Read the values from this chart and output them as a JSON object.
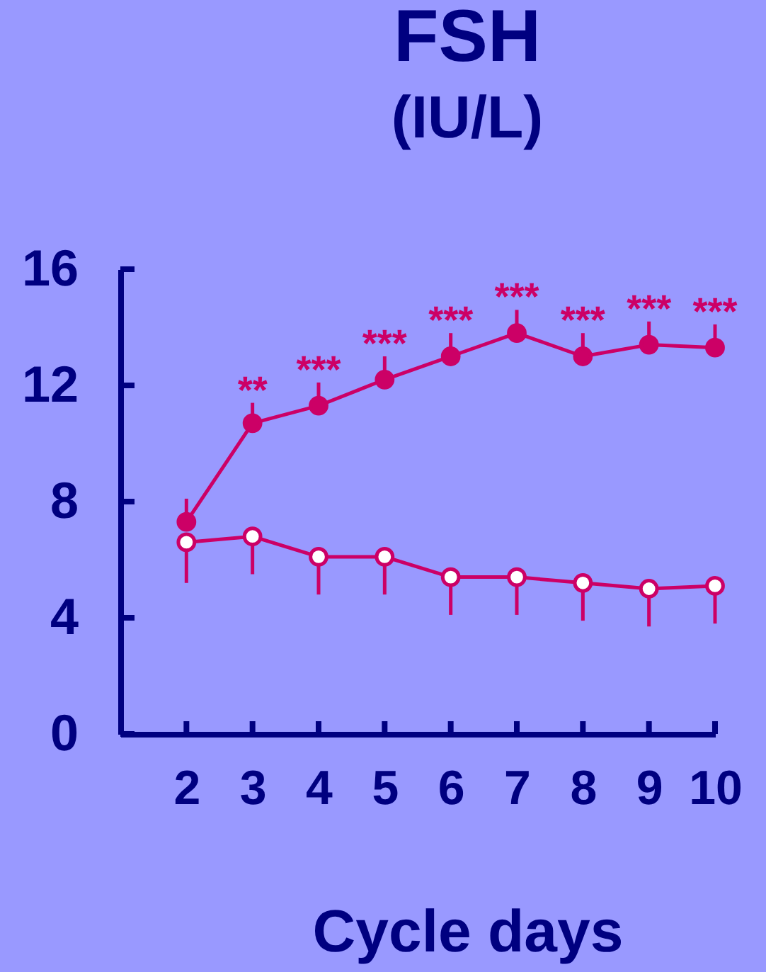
{
  "chart_data": {
    "type": "line",
    "title": "FSH",
    "subtitle": "(IU/L)",
    "xlabel": "Cycle days",
    "x": [
      2,
      3,
      4,
      5,
      6,
      7,
      8,
      9,
      10
    ],
    "xlim": [
      1,
      10
    ],
    "xticks": [
      2,
      3,
      4,
      5,
      6,
      7,
      8,
      9,
      10
    ],
    "ylim": [
      0,
      16
    ],
    "yticks": [
      0,
      4,
      8,
      12,
      16
    ],
    "marker": "circle",
    "line_style": "solid",
    "series": [
      {
        "color": "#cc0066",
        "values": [
          7.3,
          10.7,
          11.3,
          12.2,
          13.0,
          13.8,
          13.0,
          13.4,
          13.3
        ],
        "errors": [
          [
            7.3,
            8.1
          ],
          [
            10.7,
            11.4
          ],
          [
            11.3,
            12.1
          ],
          [
            12.2,
            13.0
          ],
          [
            13.0,
            13.8
          ],
          [
            13.8,
            14.6
          ],
          [
            13.0,
            13.8
          ],
          [
            13.4,
            14.2
          ],
          [
            13.3,
            14.1
          ]
        ]
      },
      {
        "color": "#cc0066",
        "colors": [
          "#ffffff",
          "#ffffff",
          "#ffffff",
          "#ffffff",
          "#ffffff",
          "#ffffff",
          "#ffffff",
          "#ffffff",
          "#ffffff"
        ],
        "values": [
          6.6,
          6.8,
          6.1,
          6.1,
          5.4,
          5.4,
          5.2,
          5.0,
          5.1
        ],
        "errors": [
          [
            5.2,
            6.6
          ],
          [
            5.5,
            6.8
          ],
          [
            4.8,
            6.1
          ],
          [
            4.8,
            6.1
          ],
          [
            4.1,
            5.4
          ],
          [
            4.1,
            5.4
          ],
          [
            3.9,
            5.2
          ],
          [
            3.7,
            5.0
          ],
          [
            3.8,
            5.1
          ]
        ]
      }
    ],
    "annotations": [
      {
        "text": "**",
        "x": 3,
        "y": 11.4
      },
      {
        "text": "***",
        "x": 4,
        "y": 12.1
      },
      {
        "text": "***",
        "x": 5,
        "y": 13.0
      },
      {
        "text": "***",
        "x": 6,
        "y": 13.8
      },
      {
        "text": "***",
        "x": 7,
        "y": 14.6
      },
      {
        "text": "***",
        "x": 8,
        "y": 13.8
      },
      {
        "text": "***",
        "x": 9,
        "y": 14.2
      },
      {
        "text": "***",
        "x": 10,
        "y": 14.1
      }
    ]
  }
}
